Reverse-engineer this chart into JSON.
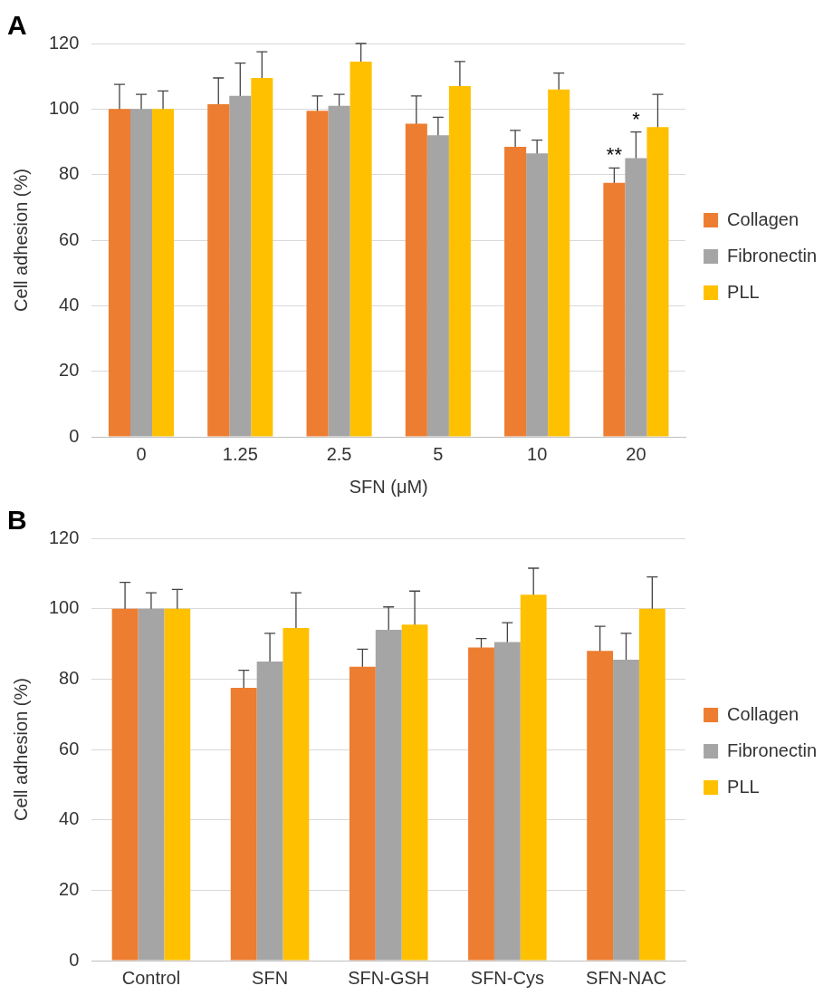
{
  "chart_data": [
    {
      "type": "bar",
      "title": "A",
      "xlabel": "SFN (μM)",
      "ylabel": "Cell adhesion (%)",
      "categories": [
        "0",
        "1.25",
        "2.5",
        "5",
        "10",
        "20"
      ],
      "series": [
        {
          "name": "Collagen",
          "color": "#ed7d31",
          "values": [
            100,
            101.5,
            99.5,
            95.5,
            88.5,
            77.5
          ],
          "errors": [
            7.5,
            8,
            4.5,
            8.5,
            5,
            4.5
          ]
        },
        {
          "name": "Fibronectin",
          "color": "#a5a5a5",
          "values": [
            100,
            104,
            101,
            92,
            86.5,
            85
          ],
          "errors": [
            4.5,
            10,
            3.5,
            5.5,
            4,
            8
          ]
        },
        {
          "name": "PLL",
          "color": "#ffc000",
          "values": [
            100,
            109.5,
            114.5,
            107,
            106,
            94.5
          ],
          "errors": [
            5.5,
            8,
            5.5,
            7.5,
            5,
            10
          ]
        }
      ],
      "ylim": [
        0,
        120
      ],
      "yticks": [
        0,
        20,
        40,
        60,
        80,
        100,
        120
      ],
      "grid": "y",
      "legend": "right",
      "annotations": [
        {
          "text": "**",
          "x": "20",
          "y": 82
        },
        {
          "text": "*",
          "x": "20",
          "y": 93
        }
      ]
    },
    {
      "type": "bar",
      "title": "B",
      "ylabel": "Cell adhesion (%)",
      "categories": [
        "Control",
        "SFN",
        "SFN-GSH",
        "SFN-Cys",
        "SFN-NAC"
      ],
      "series": [
        {
          "name": "Collagen",
          "color": "#ed7d31",
          "values": [
            100,
            77.5,
            83.5,
            89,
            88
          ],
          "errors": [
            7.5,
            5,
            5,
            2.5,
            7
          ]
        },
        {
          "name": "Fibronectin",
          "color": "#a5a5a5",
          "values": [
            100,
            85,
            94,
            90.5,
            85.5
          ],
          "errors": [
            4.5,
            8,
            6.5,
            5.5,
            7.5
          ]
        },
        {
          "name": "PLL",
          "color": "#ffc000",
          "values": [
            100,
            94.5,
            95.5,
            104,
            100
          ],
          "errors": [
            5.5,
            10,
            9.5,
            7.5,
            9
          ]
        }
      ],
      "ylim": [
        0,
        120
      ],
      "yticks": [
        0,
        20,
        40,
        60,
        80,
        100,
        120
      ],
      "grid": "y",
      "legend": "right"
    }
  ]
}
